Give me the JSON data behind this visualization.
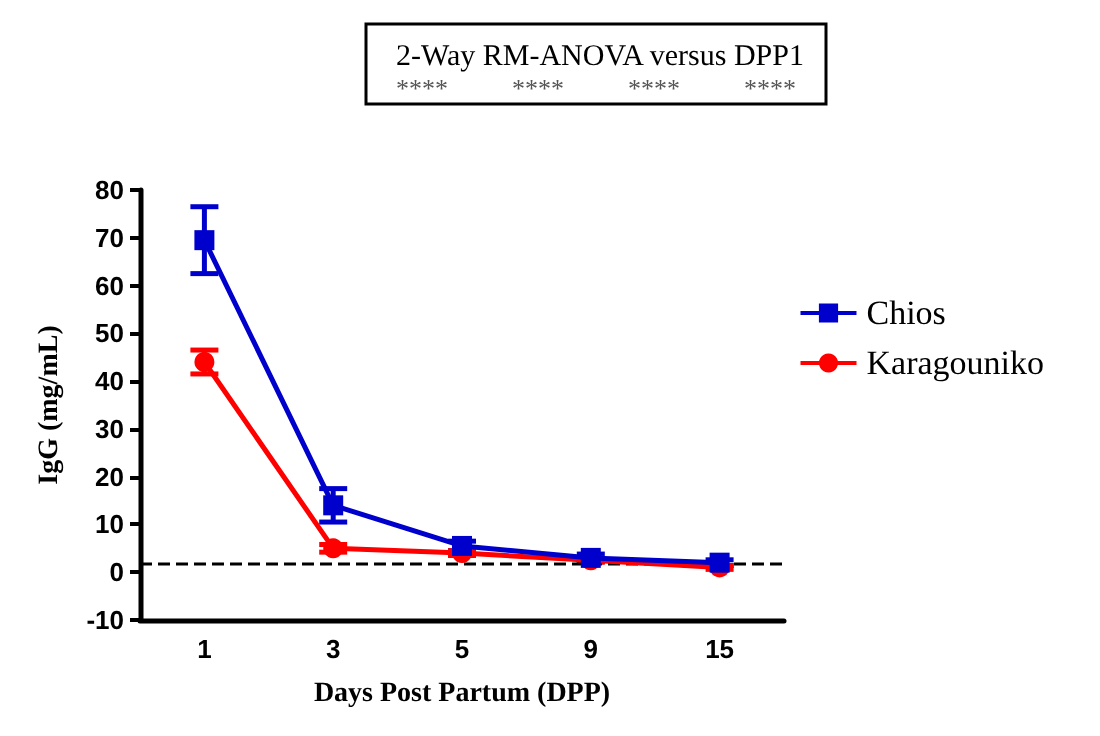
{
  "chart_data": {
    "type": "line",
    "title": "2-Way RM-ANOVA versus DPP1",
    "annotations": [
      "****",
      "****",
      "****",
      "****"
    ],
    "xlabel": "Days Post Partum (DPP)",
    "ylabel": "IgG (mg/mL)",
    "categories": [
      "1",
      "3",
      "5",
      "9",
      "15"
    ],
    "series": [
      {
        "name": "Chios",
        "color": "#0000cc",
        "marker": "square",
        "values": [
          69.5,
          14,
          5.5,
          3,
          2
        ],
        "errors": [
          7,
          3.5,
          1,
          0.8,
          0.6
        ]
      },
      {
        "name": "Karagouniko",
        "color": "#ff0000",
        "marker": "circle",
        "values": [
          44,
          5,
          4,
          2.5,
          1
        ],
        "errors": [
          2.5,
          0.8,
          0.5,
          0.4,
          0.4
        ]
      }
    ],
    "ylim": [
      -10,
      80
    ],
    "yticks": [
      -10,
      0,
      10,
      20,
      30,
      40,
      50,
      60,
      70,
      80
    ],
    "grid": false,
    "legend": "top right",
    "ref_lines": [
      {
        "axis": "y",
        "value": 1.7,
        "color": "#000000",
        "line_style": "dashed"
      }
    ]
  }
}
